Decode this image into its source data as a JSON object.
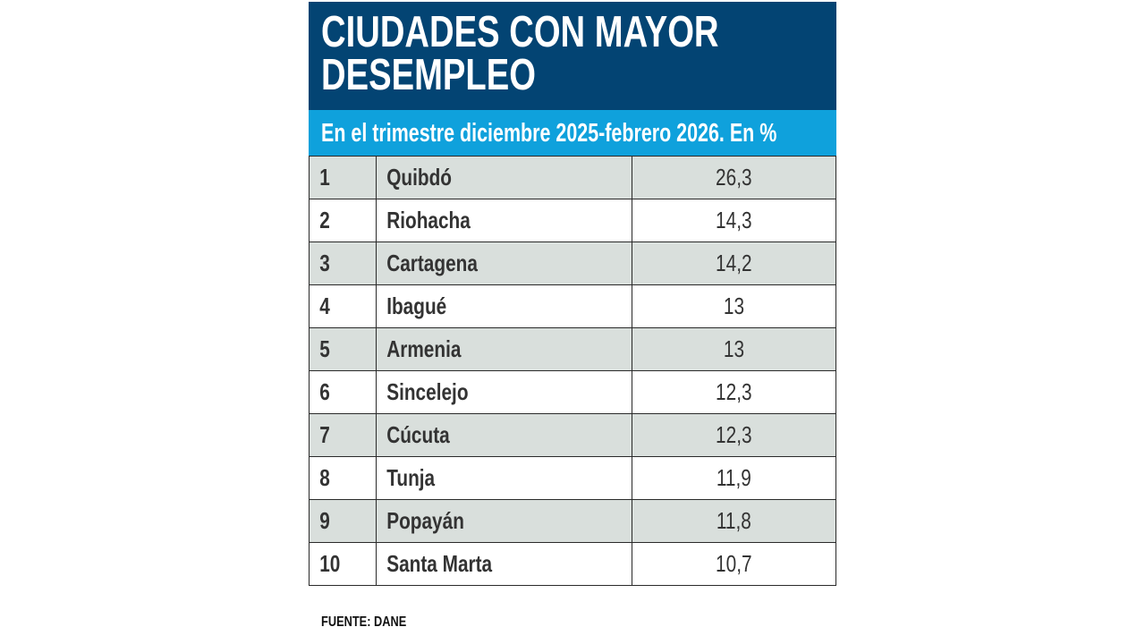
{
  "chart_data": {
    "type": "table",
    "title": "CIUDADES CON MAYOR DESEMPLEO",
    "title_lines": [
      "CIUDADES CON MAYOR",
      "DESEMPLEO"
    ],
    "subtitle": "En el trimestre diciembre 2025-febrero 2026. En %",
    "rows": [
      {
        "rank": "1",
        "city": "Quibdó",
        "value": "26,3"
      },
      {
        "rank": "2",
        "city": "Riohacha",
        "value": "14,3"
      },
      {
        "rank": "3",
        "city": "Cartagena",
        "value": "14,2"
      },
      {
        "rank": "4",
        "city": "Ibagué",
        "value": "13"
      },
      {
        "rank": "5",
        "city": "Armenia",
        "value": "13"
      },
      {
        "rank": "6",
        "city": "Sincelejo",
        "value": "12,3"
      },
      {
        "rank": "7",
        "city": "Cúcuta",
        "value": "12,3"
      },
      {
        "rank": "8",
        "city": "Tunja",
        "value": "11,9"
      },
      {
        "rank": "9",
        "city": "Popayán",
        "value": "11,8"
      },
      {
        "rank": "10",
        "city": "Santa Marta",
        "value": "10,7"
      }
    ],
    "source": "FUENTE: DANE",
    "colors": {
      "header": "#034473",
      "subheader": "#0fa1dc",
      "row_alt": "#d9dfdc",
      "row": "#ffffff"
    }
  }
}
